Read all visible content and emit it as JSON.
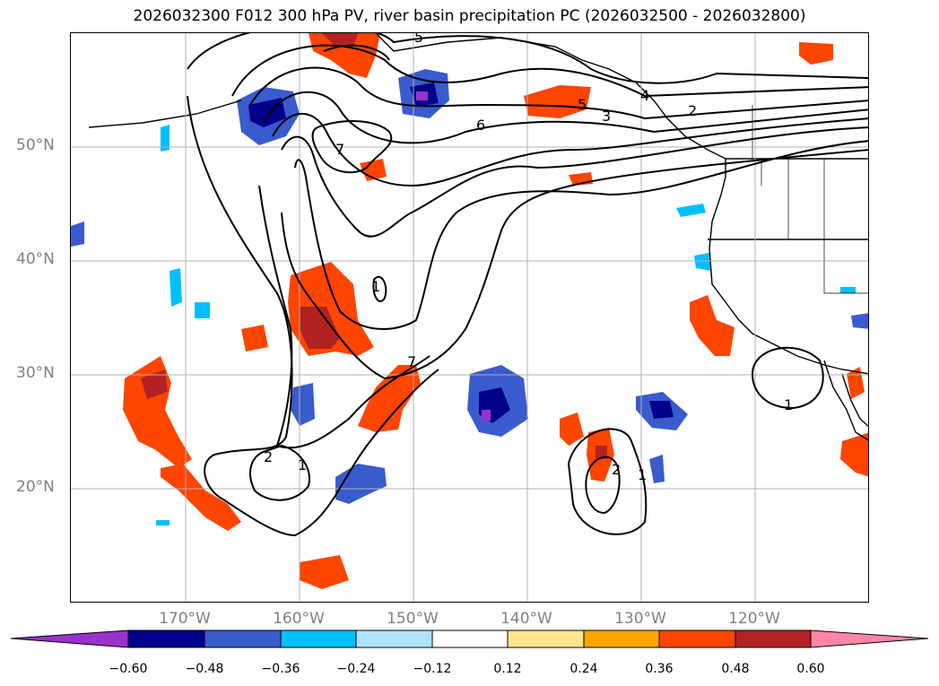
{
  "title": "2026032300 F012 300 hPa PV, river basin precipitation PC (2026032500 - 2026032800)",
  "lat_labels": [
    "50°N",
    "40°N",
    "30°N",
    "20°N"
  ],
  "lon_labels": [
    "170°W",
    "160°W",
    "150°W",
    "140°W",
    "130°W",
    "120°W"
  ],
  "pv_contour_labels": [
    "7",
    "6",
    "5",
    "4",
    "3",
    "2",
    "1",
    "1",
    "2",
    "7",
    "1",
    "2",
    "1",
    "5"
  ],
  "colorbar": {
    "ticks": [
      "−0.60",
      "−0.48",
      "−0.36",
      "−0.24",
      "−0.12",
      "0.12",
      "0.24",
      "0.36",
      "0.48",
      "0.60"
    ],
    "colors": [
      "#9932cc",
      "#00008b",
      "#3a5bcd",
      "#00bfff",
      "#b0e2ff",
      "#ffffff",
      "#ffe68c",
      "#ffa500",
      "#ff4500",
      "#b22222",
      "#ff85a6"
    ]
  },
  "colors": {
    "grid": "#b0b0b0",
    "coast": "#000000",
    "contour": "#000000"
  }
}
